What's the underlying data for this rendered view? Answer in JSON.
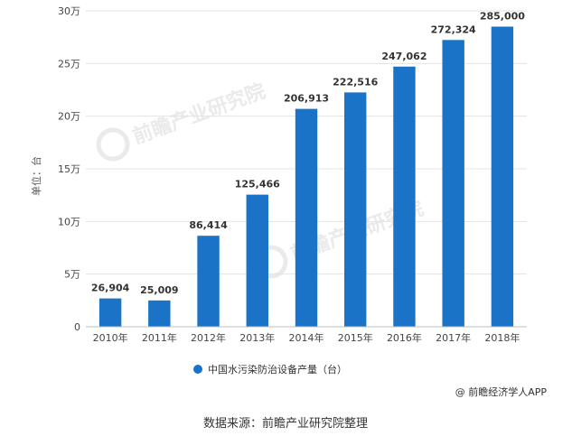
{
  "chart_data": {
    "type": "bar",
    "categories": [
      "2010年",
      "2011年",
      "2012年",
      "2013年",
      "2014年",
      "2015年",
      "2016年",
      "2017年",
      "2018年"
    ],
    "series": [
      {
        "name": "中国水污染防治设备产量（台）",
        "values": [
          26904,
          25009,
          86414,
          125466,
          206913,
          222516,
          247062,
          272324,
          285000
        ],
        "value_labels": [
          "26,904",
          "25,009",
          "86,414",
          "125,466",
          "206,913",
          "222,516",
          "247,062",
          "272,324",
          "285,000"
        ],
        "color": "#1a73c7"
      }
    ],
    "ylabel": "单位：台",
    "ylim": [
      0,
      300000
    ],
    "yticks": [
      0,
      50000,
      100000,
      150000,
      200000,
      250000,
      300000
    ],
    "ytick_labels": [
      "0",
      "5万",
      "10万",
      "15万",
      "20万",
      "25万",
      "30万"
    ],
    "grid": true,
    "legend_position": "bottom"
  },
  "credit": "@ 前瞻经济学人APP",
  "source": "数据来源：前瞻产业研究院整理",
  "watermark": "前瞻产业研究院",
  "colors": {
    "bar": "#1a73c7",
    "grid": "#e3e3e3",
    "axis": "#bfbfbf",
    "watermark": "#d9d9d9"
  }
}
